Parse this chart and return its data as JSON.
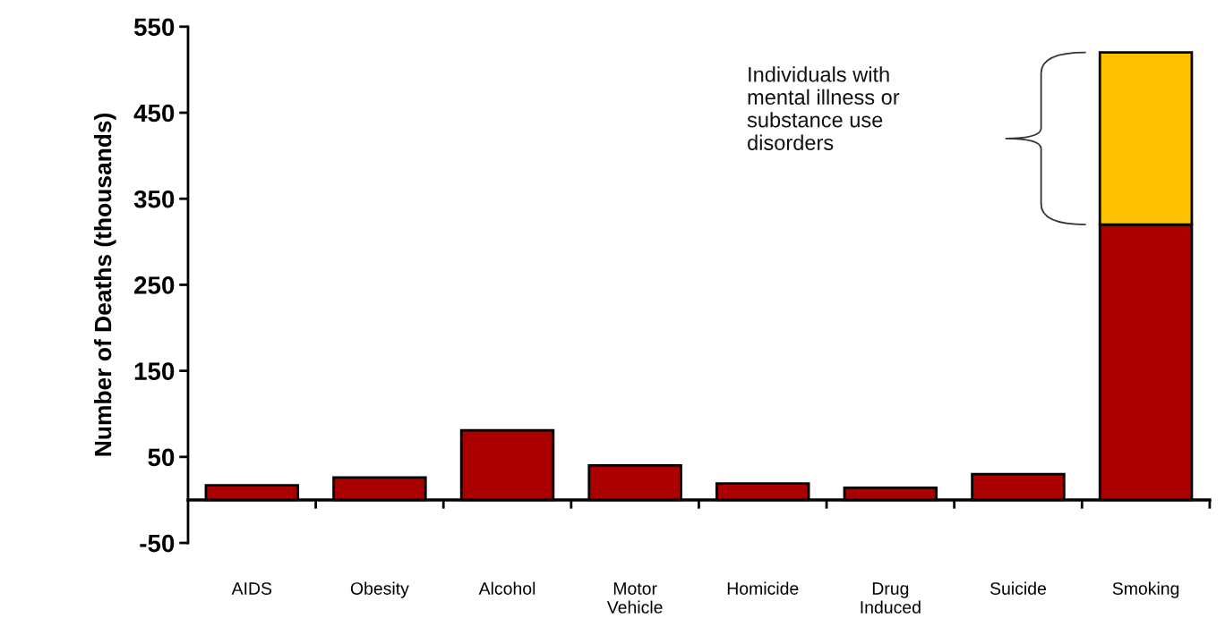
{
  "chart_data": {
    "type": "bar",
    "stacked": true,
    "ylabel": "Number of Deaths (thousands)",
    "categories": [
      "AIDS",
      "Obesity",
      "Alcohol",
      "Motor\nVehicle",
      "Homicide",
      "Drug\nInduced",
      "Suicide",
      "Smoking"
    ],
    "series": [
      {
        "color": "#aa0000",
        "values": [
          17,
          26,
          81,
          40,
          19,
          14,
          30,
          320
        ]
      },
      {
        "color": "#ffc000",
        "values": [
          null,
          null,
          null,
          null,
          null,
          null,
          null,
          200
        ]
      }
    ],
    "ylim": [
      -50,
      550
    ],
    "yticks": [
      -50,
      50,
      150,
      250,
      350,
      450,
      550
    ],
    "grid": false,
    "legend": false,
    "annotations": [
      "Individuals with\nmental illness or\nsubstance use\ndisorders"
    ]
  }
}
